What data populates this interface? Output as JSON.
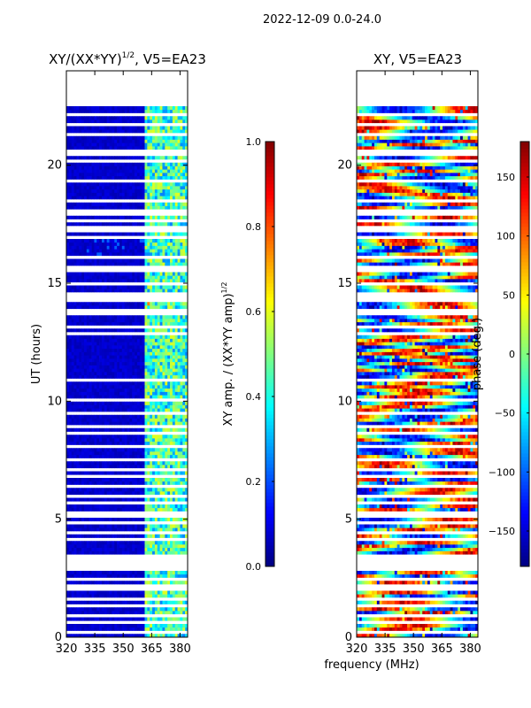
{
  "suptitle": "2022-12-09 0.0-24.0",
  "xlabel_shared": "frequency (MHz)",
  "chart_data": [
    {
      "type": "heatmap",
      "title_main": "XY/(XX*YY)",
      "title_sup": "1/2",
      "title_rest": ", V5=EA23",
      "xlabel": "frequency (MHz)",
      "ylabel": "UT (hours)",
      "xlim": [
        320,
        384
      ],
      "ylim": [
        0,
        24
      ],
      "xticks": [
        320,
        335,
        350,
        365,
        380
      ],
      "yticks": [
        0,
        5,
        10,
        15,
        20
      ],
      "data_extent_y": [
        0,
        22.5
      ],
      "band_x": [
        361,
        384
      ],
      "quantity": "amplitude",
      "colorbar": {
        "label_main": "XY amp. / (XX*YY amp)",
        "label_sup": "1/2",
        "range": [
          0.0,
          1.0
        ],
        "ticks": [
          0.0,
          0.2,
          0.4,
          0.6,
          0.8,
          1.0
        ],
        "tick_labels": [
          "0.0",
          "0.2",
          "0.4",
          "0.6",
          "0.8",
          "1.0"
        ]
      }
    },
    {
      "type": "heatmap",
      "title_main": "XY, V5=EA23",
      "xlabel": "frequency (MHz)",
      "ylabel": "",
      "xlim": [
        320,
        384
      ],
      "ylim": [
        0,
        24
      ],
      "xticks": [
        320,
        335,
        350,
        365,
        380
      ],
      "yticks": [
        0,
        5,
        10,
        15,
        20
      ],
      "data_extent_y": [
        0,
        22.5
      ],
      "quantity": "phase",
      "colorbar": {
        "label_main": "phase (deg.)",
        "range": [
          -180,
          180
        ],
        "ticks": [
          -150,
          -100,
          -50,
          0,
          50,
          100,
          150
        ],
        "tick_labels": [
          "−150",
          "−100",
          "−50",
          "0",
          "50",
          "100",
          "150"
        ]
      }
    }
  ],
  "flagged_rows_hours": [
    0.2,
    0.6,
    0.9,
    1.3,
    1.6,
    2.1,
    2.5,
    2.9,
    3.0,
    3.1,
    3.2,
    3.3,
    3.4,
    4.1,
    4.4,
    4.9,
    5.2,
    5.7,
    6.0,
    6.4,
    6.8,
    7.1,
    7.5,
    8.1,
    8.6,
    8.9,
    9.5,
    10.1,
    10.9,
    12.9,
    13.1,
    13.8,
    14.3,
    14.4,
    14.5,
    15.0,
    15.6,
    16.1,
    16.9,
    17.2,
    17.4,
    17.6,
    18.0,
    18.5,
    19.3,
    20.2,
    20.5,
    20.6,
    21.3,
    21.7,
    22.1
  ]
}
